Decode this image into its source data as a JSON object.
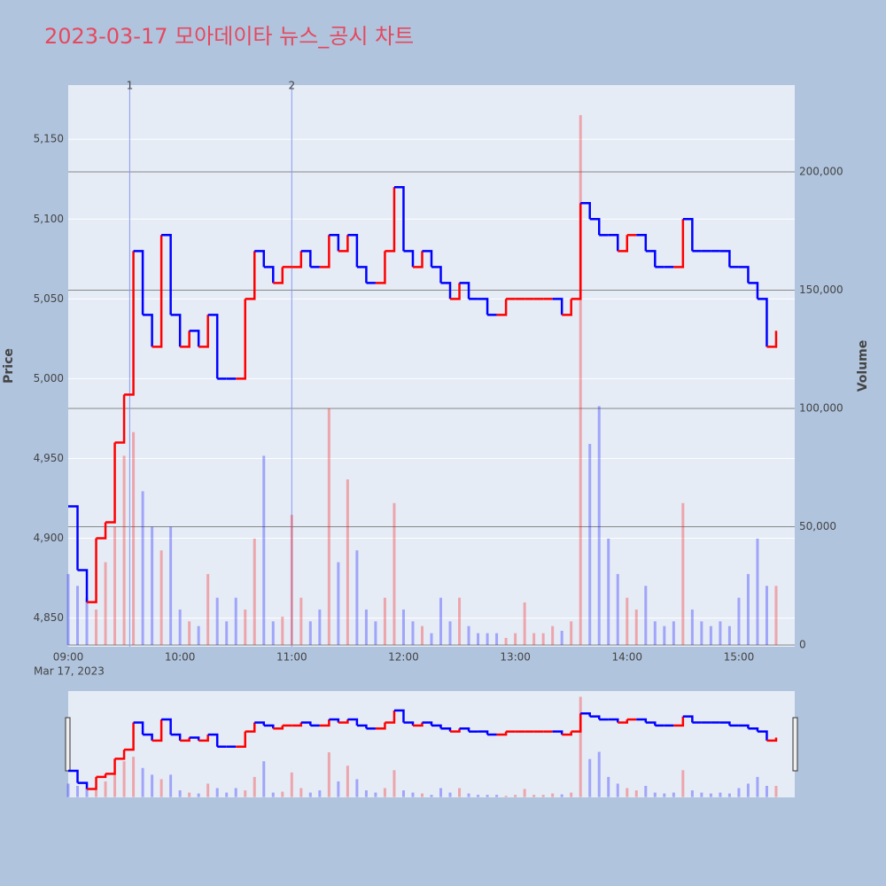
{
  "chart_data": {
    "type": "price-volume",
    "title": "2023-03-17 모아데이타 뉴스_공시 차트",
    "y_label": "Price",
    "y2_label": "Volume",
    "x_date_label": "Mar 17, 2023",
    "up_color": "red",
    "down_color": "blue",
    "grid": true,
    "xlim": [
      "09:00",
      "15:30"
    ],
    "xticks": [
      "09:00",
      "10:00",
      "11:00",
      "12:00",
      "13:00",
      "14:00",
      "15:00"
    ],
    "ylim": [
      4832,
      5184
    ],
    "yticks": [
      {
        "value": 4850,
        "label": "4,850"
      },
      {
        "value": 4900,
        "label": "4,900"
      },
      {
        "value": 4950,
        "label": "4,950"
      },
      {
        "value": 5000,
        "label": "5,000"
      },
      {
        "value": 5050,
        "label": "5,050"
      },
      {
        "value": 5100,
        "label": "5,100"
      },
      {
        "value": 5150,
        "label": "5,150"
      }
    ],
    "y2lim": [
      -750,
      236700
    ],
    "y2ticks": [
      0,
      {
        "value": 50000,
        "label": "50,000"
      },
      {
        "value": 100000,
        "label": "100,000"
      },
      {
        "value": 150000,
        "label": "150,000"
      },
      {
        "value": 200000,
        "label": "200,000"
      }
    ],
    "annotations": [
      {
        "x": "09:33",
        "label": "1"
      },
      {
        "x": "11:00",
        "label": "2"
      }
    ],
    "x": [
      "09:00",
      "09:05",
      "09:10",
      "09:15",
      "09:20",
      "09:25",
      "09:30",
      "09:35",
      "09:40",
      "09:45",
      "09:50",
      "09:55",
      "10:00",
      "10:05",
      "10:10",
      "10:15",
      "10:20",
      "10:25",
      "10:30",
      "10:35",
      "10:40",
      "10:45",
      "10:50",
      "10:55",
      "11:00",
      "11:05",
      "11:10",
      "11:15",
      "11:20",
      "11:25",
      "11:30",
      "11:35",
      "11:40",
      "11:45",
      "11:50",
      "11:55",
      "12:00",
      "12:05",
      "12:10",
      "12:15",
      "12:20",
      "12:25",
      "12:30",
      "12:35",
      "12:40",
      "12:45",
      "12:50",
      "12:55",
      "13:00",
      "13:05",
      "13:10",
      "13:15",
      "13:20",
      "13:25",
      "13:30",
      "13:35",
      "13:40",
      "13:45",
      "13:50",
      "13:55",
      "14:00",
      "14:05",
      "14:10",
      "14:15",
      "14:20",
      "14:25",
      "14:30",
      "14:35",
      "14:40",
      "14:45",
      "14:50",
      "14:55",
      "15:00",
      "15:05",
      "15:10",
      "15:15",
      "15:20"
    ],
    "series": [
      {
        "name": "Price",
        "values": [
          4920,
          4880,
          4860,
          4900,
          4910,
          4960,
          4990,
          5080,
          5040,
          5020,
          5090,
          5040,
          5020,
          5030,
          5020,
          5040,
          5000,
          5000,
          5000,
          5050,
          5080,
          5070,
          5060,
          5070,
          5070,
          5080,
          5070,
          5070,
          5090,
          5080,
          5090,
          5070,
          5060,
          5060,
          5080,
          5120,
          5080,
          5070,
          5080,
          5070,
          5060,
          5050,
          5060,
          5050,
          5050,
          5040,
          5040,
          5050,
          5050,
          5050,
          5050,
          5050,
          5050,
          5040,
          5050,
          5110,
          5100,
          5090,
          5090,
          5080,
          5090,
          5090,
          5080,
          5070,
          5070,
          5070,
          5100,
          5080,
          5080,
          5080,
          5080,
          5070,
          5070,
          5060,
          5050,
          5020,
          5030
        ]
      },
      {
        "name": "Volume",
        "axis": "y2",
        "values": [
          30000,
          25000,
          20000,
          15000,
          35000,
          50000,
          80000,
          90000,
          65000,
          50000,
          40000,
          50000,
          15000,
          10000,
          8000,
          30000,
          20000,
          10000,
          20000,
          15000,
          45000,
          80000,
          10000,
          12000,
          55000,
          20000,
          10000,
          15000,
          100000,
          35000,
          70000,
          40000,
          15000,
          10000,
          20000,
          60000,
          15000,
          10000,
          8000,
          5000,
          20000,
          10000,
          20000,
          8000,
          5000,
          5000,
          5000,
          3000,
          5000,
          18000,
          5000,
          5000,
          8000,
          6000,
          10000,
          224000,
          85000,
          101000,
          45000,
          30000,
          20000,
          15000,
          25000,
          10000,
          8000,
          10000,
          60000,
          15000,
          10000,
          8000,
          10000,
          8000,
          20000,
          30000,
          45000,
          25000,
          25000
        ]
      }
    ]
  }
}
